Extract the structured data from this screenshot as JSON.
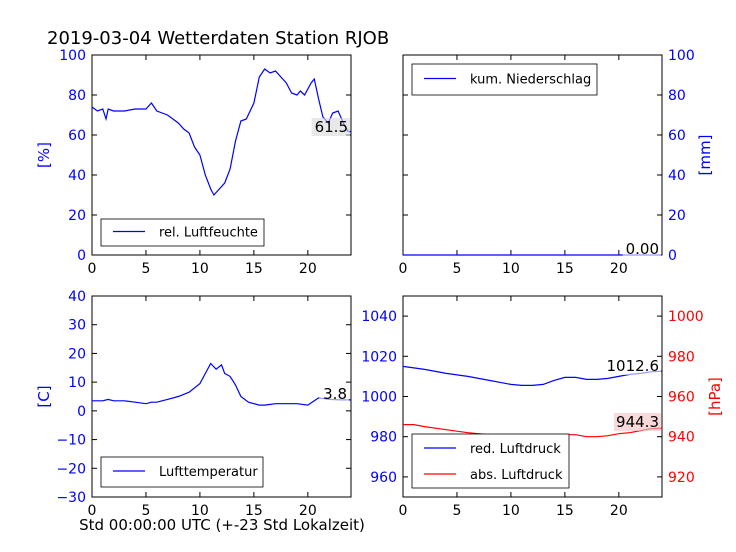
{
  "title": "2019-03-04 Wetterdaten Station RJOB",
  "colors": {
    "blue": "#0000ff",
    "red": "#ff0000",
    "axis": "#000000",
    "badge_bg": "#f4c2c2"
  },
  "chart_data": [
    {
      "id": "humidity",
      "type": "line",
      "ylabel": "[%]",
      "xlim": [
        0,
        24
      ],
      "ylim": [
        0,
        100
      ],
      "xticks": [
        0,
        5,
        10,
        15,
        20
      ],
      "yticks": [
        0,
        20,
        40,
        60,
        80,
        100
      ],
      "legend_position": "bottom-left",
      "last_value_label": "61.5",
      "series": [
        {
          "name": "rel. Luftfeuchte",
          "color": "#0000ff",
          "x": [
            0,
            0.5,
            1,
            1.3,
            1.5,
            2,
            3,
            4,
            5,
            5.5,
            6,
            7,
            7.5,
            8,
            8.5,
            9,
            9.5,
            10,
            10.5,
            11,
            11.3,
            11.8,
            12.3,
            12.8,
            13.3,
            13.8,
            14.3,
            15,
            15.5,
            16,
            16.5,
            17,
            17.5,
            18,
            18.5,
            19,
            19.3,
            19.7,
            20.3,
            20.6,
            21,
            21.4,
            21.9,
            22.3,
            22.8,
            23.3,
            23.7,
            24
          ],
          "y": [
            74,
            72,
            73,
            68,
            73,
            72,
            72,
            73,
            73,
            76,
            72,
            70,
            68,
            66,
            63,
            61,
            54,
            50,
            40,
            33,
            30,
            33,
            36,
            43,
            57,
            67,
            68,
            76,
            89,
            93,
            91,
            92,
            89,
            86,
            81,
            80,
            82,
            80,
            86,
            88,
            78,
            69,
            66,
            71,
            72,
            66,
            62,
            61.5
          ]
        }
      ]
    },
    {
      "id": "precipitation",
      "type": "line",
      "ylabel": "[mm]",
      "xlim": [
        0,
        24
      ],
      "ylim": [
        0,
        100
      ],
      "xticks": [
        0,
        5,
        10,
        15,
        20
      ],
      "yticks": [
        0,
        20,
        40,
        60,
        80,
        100
      ],
      "legend_position": "top-left",
      "last_value_label": "0.00",
      "series": [
        {
          "name": "kum. Niederschlag",
          "color": "#0000ff",
          "x": [
            0,
            24
          ],
          "y": [
            0,
            0
          ]
        }
      ]
    },
    {
      "id": "temperature",
      "type": "line",
      "ylabel": "[C]",
      "xlabel": "Std 00:00:00 UTC (+-23 Std Lokalzeit)",
      "xlim": [
        0,
        24
      ],
      "ylim": [
        -30,
        40
      ],
      "xticks": [
        0,
        5,
        10,
        15,
        20
      ],
      "yticks": [
        -30,
        -20,
        -10,
        0,
        10,
        20,
        30,
        40
      ],
      "legend_position": "bottom-left",
      "last_value_label": "3.8",
      "series": [
        {
          "name": "Lufttemperatur",
          "color": "#0000ff",
          "x": [
            0,
            1,
            1.5,
            2,
            3,
            4,
            5,
            5.5,
            6,
            7,
            8,
            9,
            10,
            10.5,
            11,
            11.5,
            12,
            12.3,
            12.8,
            13.3,
            13.8,
            14.5,
            15.5,
            16,
            17,
            18,
            19,
            20,
            21,
            22,
            23,
            24
          ],
          "y": [
            3.5,
            3.5,
            4.0,
            3.5,
            3.5,
            3.0,
            2.5,
            3.0,
            3.0,
            4.0,
            5.0,
            6.5,
            9.5,
            13,
            16.5,
            14.5,
            16,
            13,
            12,
            9,
            5,
            3,
            2,
            2,
            2.5,
            2.5,
            2.5,
            2,
            4.5,
            4,
            3.8,
            3.8
          ]
        }
      ]
    },
    {
      "id": "pressure",
      "type": "line",
      "xlim": [
        0,
        24
      ],
      "ylim": [
        950,
        1050
      ],
      "ylim_right": [
        910,
        1010
      ],
      "xticks": [
        0,
        5,
        10,
        15,
        20
      ],
      "yticks": [
        960,
        980,
        1000,
        1020,
        1040
      ],
      "yticks_right": [
        920,
        940,
        960,
        980,
        1000
      ],
      "ylabel_right": "[hPa]",
      "legend_position": "bottom-left",
      "last_value_label": "1012.6",
      "last_value_label_2": "944.3",
      "series": [
        {
          "name": "red. Luftdruck",
          "color": "#0000ff",
          "axis": "left",
          "x": [
            0,
            2,
            4,
            6,
            8,
            10,
            11,
            12,
            13,
            14,
            15,
            16,
            17,
            18,
            19,
            20,
            21,
            22,
            23,
            24
          ],
          "y": [
            1015,
            1013.5,
            1011.5,
            1010,
            1008,
            1006,
            1005.5,
            1005.5,
            1006,
            1008,
            1009.5,
            1009.5,
            1008.5,
            1008.5,
            1009,
            1010,
            1011,
            1011.5,
            1012.3,
            1012.6
          ]
        },
        {
          "name": "abs. Luftdruck",
          "color": "#ff0000",
          "axis": "right",
          "x": [
            0,
            1,
            2,
            4,
            6,
            8,
            10,
            11,
            12,
            13,
            14,
            15,
            16,
            17,
            18,
            19,
            20,
            21,
            22,
            23,
            24
          ],
          "y": [
            946,
            946,
            945,
            943.5,
            942,
            941,
            939.5,
            939.5,
            940.5,
            940.5,
            940.5,
            941,
            941,
            940,
            940,
            940.5,
            941.5,
            942,
            943,
            944,
            944.3
          ]
        }
      ]
    }
  ]
}
